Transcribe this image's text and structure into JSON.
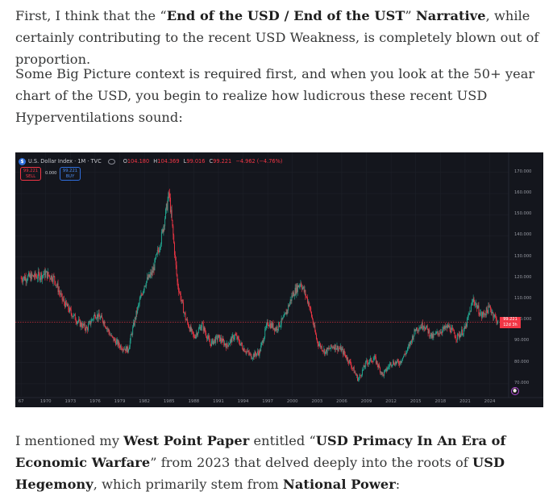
{
  "paragraph1": {
    "t1": "First, I think that the “",
    "b1": "End of the USD / End of the UST",
    "t2": "” ",
    "b2": "Narrative",
    "t3": ", while certainly contributing to the recent USD Weakness, is completely blown out of proportion."
  },
  "paragraph2": {
    "text": "Some Big Picture context is required first, and when you look at the 50+ year chart of the USD, you begin to realize how ludicrous these recent USD Hyperventilations sound:"
  },
  "chart": {
    "symbol_title": "U.S. Dollar Index · 1M · TVC",
    "logo_letter": "$",
    "ohlc": {
      "o_label": "O",
      "o_value": "104.180",
      "h_label": "H",
      "h_value": "104.369",
      "l_label": "L",
      "l_value": "99.016",
      "c_label": "C",
      "c_value": "99.221",
      "change": "−4.962 (−4.76%)"
    },
    "sell": {
      "price": "99.221",
      "label": "SELL"
    },
    "spread": "0.000",
    "buy": {
      "price": "99.221",
      "label": "BUY"
    },
    "last_price": {
      "value": "99.221",
      "countdown": "12d 3h"
    },
    "colors": {
      "background": "#14161d",
      "up": "#22ab94",
      "down": "#f23645",
      "accent": "#2f6fde"
    },
    "icons": [
      "dollar-logo-icon",
      "eye-icon",
      "clock-icon"
    ]
  },
  "chart_data": {
    "type": "candlestick",
    "title": "U.S. Dollar Index · 1M · TVC",
    "y_ticks": [
      "170.000",
      "160.000",
      "150.000",
      "140.000",
      "130.000",
      "120.000",
      "110.000",
      "100.000",
      "90.000",
      "80.000",
      "70.000"
    ],
    "x_ticks": [
      "67",
      "1970",
      "1973",
      "1976",
      "1979",
      "1982",
      "1985",
      "1988",
      "1991",
      "1994",
      "1997",
      "2000",
      "2003",
      "2006",
      "2009",
      "2012",
      "2015",
      "2018",
      "2021",
      "2024"
    ],
    "ylim": [
      65,
      173
    ],
    "grid": true,
    "series": [
      {
        "x": [
          1967,
          1969,
          1970,
          1971,
          1972,
          1973,
          1974,
          1975,
          1976,
          1977,
          1978,
          1979,
          1980,
          1981,
          1982,
          1983,
          1984,
          1985,
          1985.5,
          1986,
          1987,
          1988,
          1989,
          1990,
          1991,
          1992,
          1993,
          1994,
          1995,
          1996,
          1997,
          1998,
          1999,
          2000,
          2001,
          2002,
          2003,
          2004,
          2005,
          2006,
          2007,
          2008,
          2009,
          2010,
          2011,
          2012,
          2013,
          2014,
          2015,
          2016,
          2017,
          2018,
          2019,
          2020,
          2021,
          2022,
          2023,
          2024,
          2025
        ],
        "y": [
          120,
          121,
          122,
          120,
          110,
          104,
          99,
          96,
          103,
          100,
          92,
          88,
          86,
          103,
          117,
          123,
          138,
          160,
          140,
          118,
          101,
          92,
          98,
          89,
          92,
          88,
          93,
          87,
          83,
          85,
          99,
          96,
          101,
          112,
          118,
          108,
          90,
          85,
          88,
          86,
          80,
          72,
          80,
          82,
          74,
          80,
          80,
          86,
          96,
          98,
          92,
          95,
          97,
          92,
          96,
          110,
          102,
          106,
          99
        ]
      }
    ]
  },
  "paragraph3": {
    "t1": "I mentioned my ",
    "b1": "West Point Paper",
    "t2": " entitled “",
    "b2": "USD Primacy In An Era of Economic Warfare",
    "t3": "” from 2023 that delved deeply into the roots of ",
    "b3": "USD Hegemony",
    "t4": ", which primarily stem from ",
    "b4": "National Power",
    "t5": ":"
  }
}
